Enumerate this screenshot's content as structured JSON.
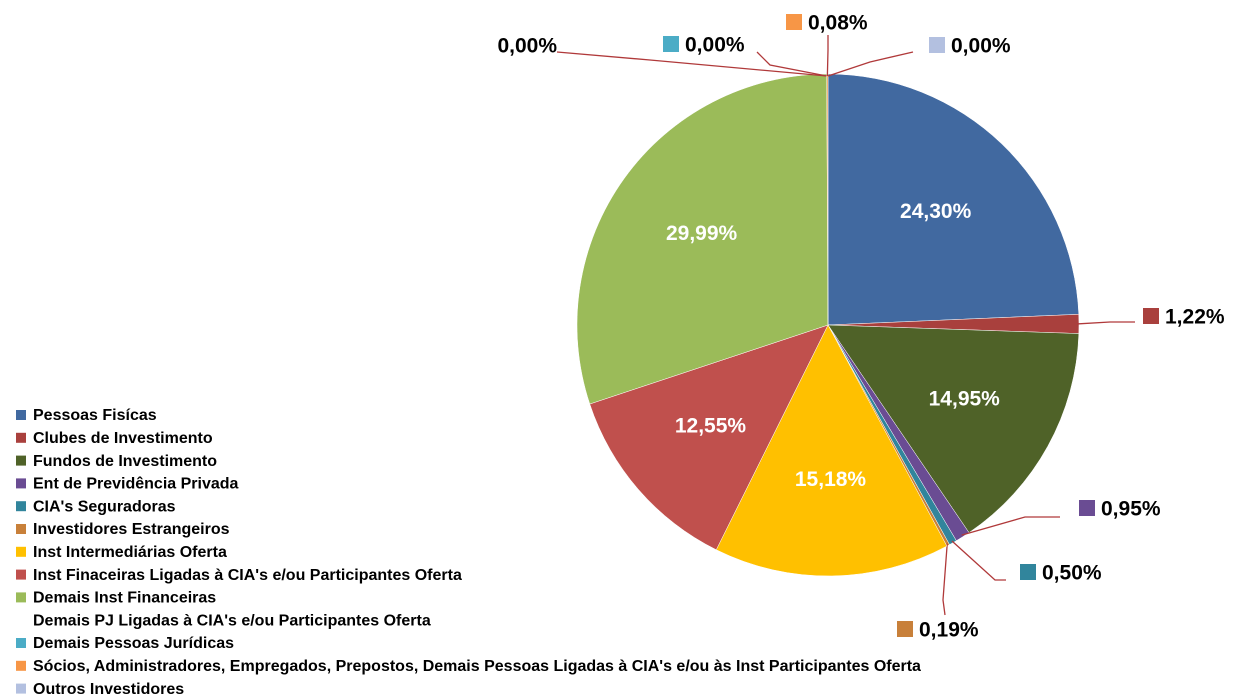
{
  "chart_data": {
    "type": "pie",
    "categories": [
      "Pessoas Fisícas",
      "Clubes de Investimento",
      "Fundos de Investimento",
      "Ent de Previdência Privada",
      "CIA's Seguradoras",
      "Investidores Estrangeiros",
      "Inst Intermediárias Oferta",
      "Inst Finaceiras Ligadas à CIA's e/ou Participantes Oferta",
      "Demais Inst Financeiras",
      "Demais PJ Ligadas à CIA's e/ou Participantes Oferta",
      "Demais Pessoas Jurídicas",
      "Sócios, Administradores, Empregados, Prepostos, Demais Pessoas Ligadas à CIA's e/ou às Inst Participantes Oferta",
      "Outros Investidores"
    ],
    "values": [
      24.3,
      1.22,
      14.95,
      0.95,
      0.5,
      0.19,
      15.18,
      12.55,
      29.99,
      0,
      0,
      0.08,
      0
    ],
    "value_labels": [
      "24,30%",
      "1,22%",
      "14,95%",
      "0,95%",
      "0,50%",
      "0,19%",
      "15,18%",
      "12,55%",
      "29,99%",
      "0,00%",
      "0,00%",
      "0,08%",
      "0,00%"
    ],
    "colors": [
      "#4169a0",
      "#a9403d",
      "#4f6228",
      "#6a4c93",
      "#31859c",
      "#c8803a",
      "#ffc000",
      "#c0504d",
      "#9bbb59",
      "#ffffff",
      "#4bacc6",
      "#f79646",
      "#b3c0e0"
    ],
    "legend": "bottom-left"
  }
}
